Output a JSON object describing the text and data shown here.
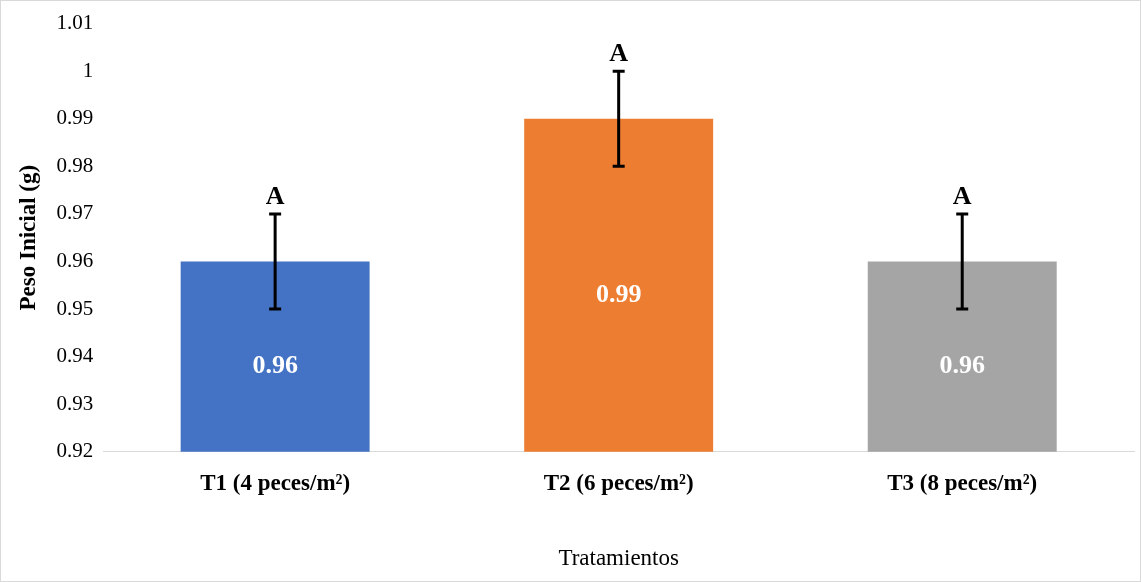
{
  "chart_data": {
    "type": "bar",
    "xlabel": "Tratamientos",
    "ylabel": "Peso Inicial (g)",
    "categories": [
      "T1 (4 peces/m²)",
      "T2 (6 peces/m²)",
      "T3 (8 peces/m²)"
    ],
    "values": [
      0.96,
      0.99,
      0.96
    ],
    "colors": [
      "#4472c4",
      "#ed7d31",
      "#a5a5a5"
    ],
    "errors": [
      0.01,
      0.01,
      0.01
    ],
    "data_labels": true,
    "ylim": [
      0.92,
      1.01
    ],
    "yticks": [
      0.92,
      0.93,
      0.94,
      0.95,
      0.96,
      0.97,
      0.98,
      0.99,
      1,
      1.01
    ],
    "grid": false,
    "legend": false,
    "annotations": [
      {
        "text": "A",
        "x": "T1 (4 peces/m²)",
        "y": 0.97
      },
      {
        "text": "A",
        "x": "T2 (6 peces/m²)",
        "y": 1
      },
      {
        "text": "A",
        "x": "T3 (8 peces/m²)",
        "y": 0.97
      }
    ]
  }
}
